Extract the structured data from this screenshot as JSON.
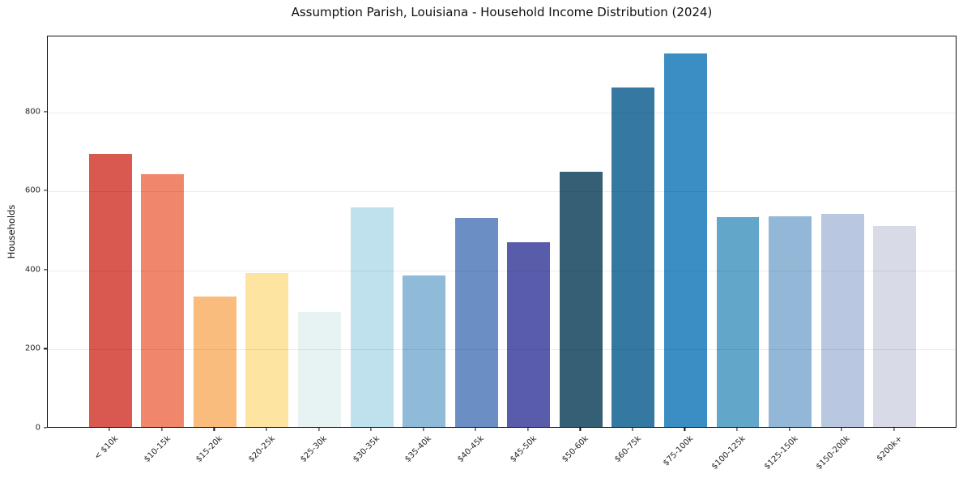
{
  "chart_data": {
    "type": "bar",
    "title": "Assumption Parish, Louisiana - Household Income Distribution (2024)",
    "xlabel": "",
    "ylabel": "Households",
    "categories": [
      "< $10k",
      "$10-15k",
      "$15-20k",
      "$20-25k",
      "$25-30k",
      "$30-35k",
      "$35-40k",
      "$40-45k",
      "$45-50k",
      "$50-60k",
      "$60-75k",
      "$75-100k",
      "$100-125k",
      "$125-150k",
      "$150-200k",
      "$200k+"
    ],
    "values": [
      690,
      640,
      330,
      390,
      291,
      556,
      384,
      529,
      468,
      645,
      858,
      945,
      530,
      532,
      540,
      508
    ],
    "bar_colors": [
      "#d9584f",
      "#f0876a",
      "#fabc7d",
      "#fde4a0",
      "#e7f3f3",
      "#bfe0ed",
      "#8fbbd9",
      "#6b8fc4",
      "#595cab",
      "#355f74",
      "#3579a2",
      "#3b8ec3",
      "#62a6ca",
      "#93b7d7",
      "#b9c8e0",
      "#d8dae8"
    ],
    "yticks": [
      0,
      200,
      400,
      600,
      800
    ],
    "ylim": [
      0,
      992
    ],
    "grid": "horizontal",
    "legend": "none",
    "background_color": "#ffffff",
    "gridline_color": "#e8e8e8",
    "spine_color": "#111111",
    "tick_label_color": "#262626"
  }
}
